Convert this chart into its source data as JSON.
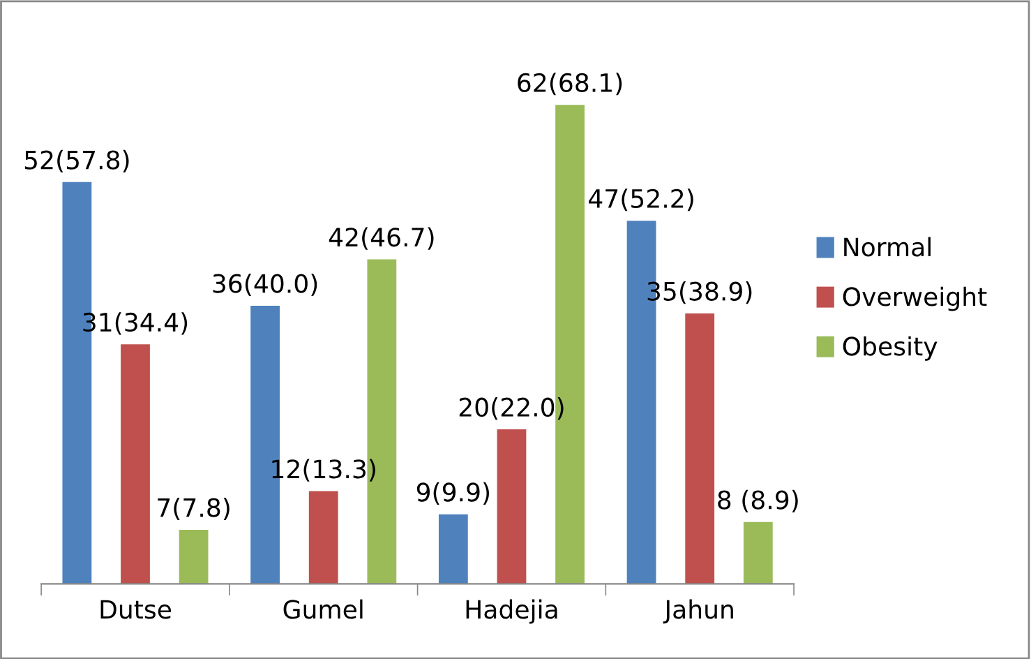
{
  "chart_data": {
    "type": "bar",
    "categories": [
      "Dutse",
      "Gumel",
      "Hadejia",
      "Jahun"
    ],
    "series": [
      {
        "name": "Normal",
        "color": "#4f81bd",
        "values": [
          52,
          36,
          9,
          47
        ],
        "value_labels": [
          "52(57.8)",
          "36(40.0)",
          "9(9.9)",
          "47(52.2)"
        ]
      },
      {
        "name": "Overweight",
        "color": "#c0504d",
        "values": [
          31,
          12,
          20,
          35
        ],
        "value_labels": [
          "31(34.4)",
          "12(13.3)",
          "20(22.0)",
          "35(38.9)"
        ]
      },
      {
        "name": "Obesity",
        "color": "#9bbb59",
        "values": [
          7,
          42,
          62,
          8
        ],
        "value_labels": [
          "7(7.8)",
          "42(46.7)",
          "62(68.1)",
          "8 (8.9)"
        ]
      }
    ],
    "legend": "right",
    "grid": false
  }
}
